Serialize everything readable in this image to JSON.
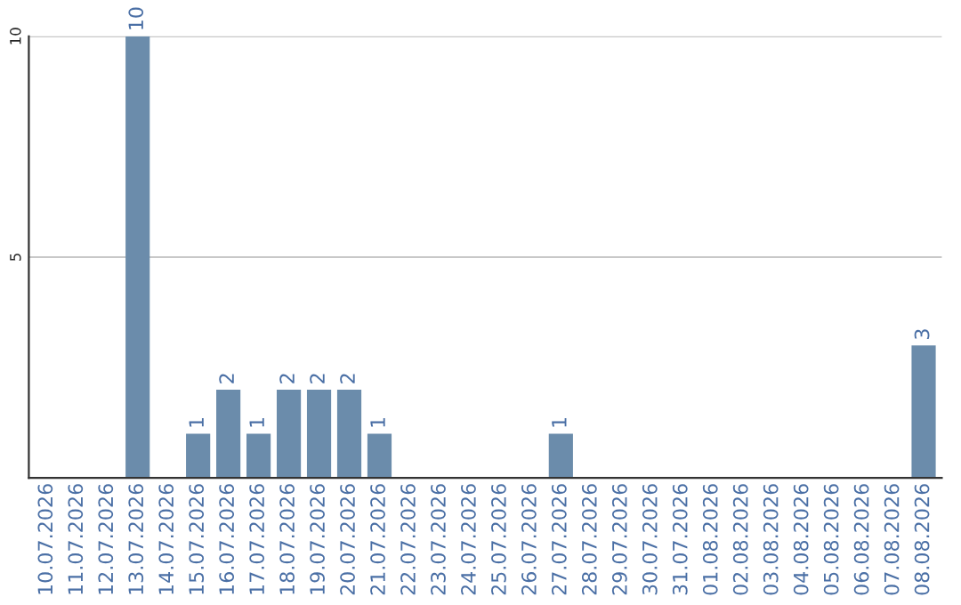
{
  "chart_data": {
    "type": "bar",
    "categories": [
      "10.07.2026",
      "11.07.2026",
      "12.07.2026",
      "13.07.2026",
      "14.07.2026",
      "15.07.2026",
      "16.07.2026",
      "17.07.2026",
      "18.07.2026",
      "19.07.2026",
      "20.07.2026",
      "21.07.2026",
      "22.07.2026",
      "23.07.2026",
      "24.07.2026",
      "25.07.2026",
      "26.07.2026",
      "27.07.2026",
      "28.07.2026",
      "29.07.2026",
      "30.07.2026",
      "31.07.2026",
      "01.08.2026",
      "02.08.2026",
      "03.08.2026",
      "04.08.2026",
      "05.08.2026",
      "06.08.2026",
      "07.08.2026",
      "08.08.2026"
    ],
    "values": [
      0,
      0,
      0,
      10,
      0,
      1,
      2,
      1,
      2,
      2,
      2,
      1,
      0,
      0,
      0,
      0,
      0,
      1,
      0,
      0,
      0,
      0,
      0,
      0,
      0,
      0,
      0,
      0,
      0,
      3
    ],
    "value_labels": [
      null,
      null,
      null,
      "10",
      null,
      "1",
      "2",
      "1",
      "2",
      "2",
      "2",
      "1",
      null,
      null,
      null,
      null,
      null,
      "1",
      null,
      null,
      null,
      null,
      null,
      null,
      null,
      null,
      null,
      null,
      null,
      "3"
    ],
    "color": "#6b8cab",
    "ylim": [
      0,
      10
    ],
    "yticks": [
      5,
      10
    ],
    "grid": "y",
    "legend": false
  }
}
